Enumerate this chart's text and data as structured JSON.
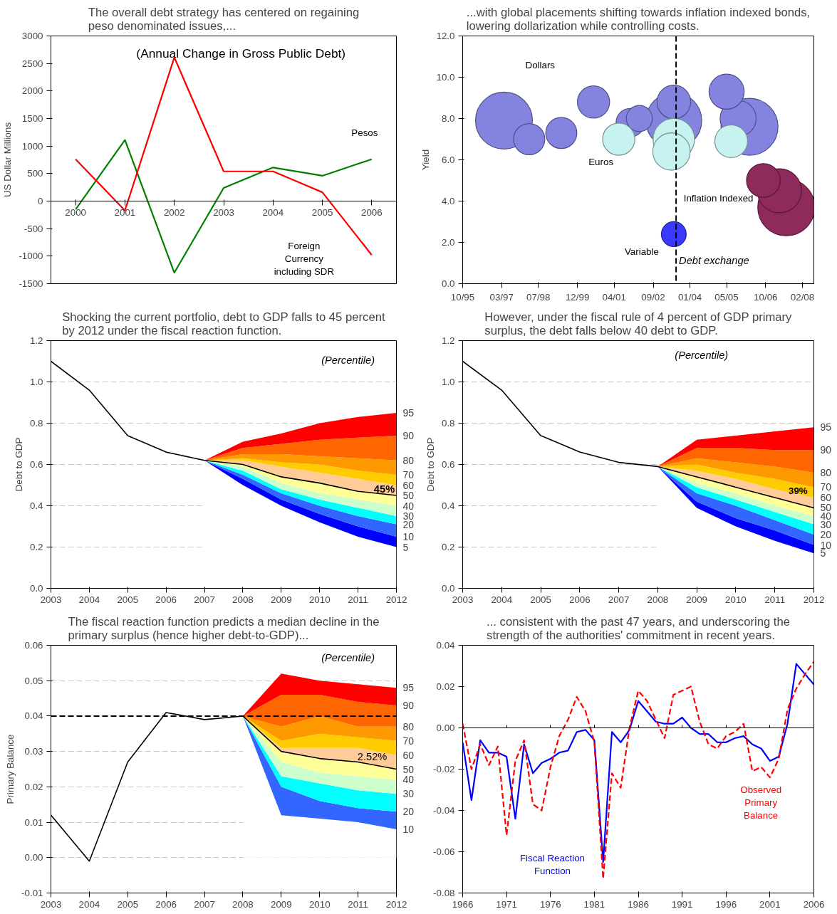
{
  "chart_data": [
    {
      "type": "line",
      "title": "The overall debt strategy has centered on regaining peso denominated issues,...",
      "ylabel": "US Dollar Millions",
      "annotations": [
        "(Annual Change in Gross Public Debt)"
      ],
      "categories": [
        "2000",
        "2001",
        "2002",
        "2003",
        "2004",
        "2005",
        "2006"
      ],
      "ylim": [
        -1500,
        3000
      ],
      "yticks": [
        -1500,
        -1000,
        -500,
        0,
        500,
        1000,
        1500,
        2000,
        2500,
        3000
      ],
      "series": [
        {
          "name": "Pesos",
          "color": "#008000",
          "values": [
            -150,
            1110,
            -1300,
            240,
            610,
            460,
            760
          ]
        },
        {
          "name": "Foreign Currency including SDR",
          "color": "#ff0000",
          "values": [
            760,
            -170,
            2610,
            540,
            540,
            160,
            -980
          ]
        }
      ]
    },
    {
      "type": "bubble",
      "title": "...with global placements shifting towards inflation indexed bonds, lowering dollarization while controlling costs.",
      "ylabel": "Yield",
      "xlim": [
        "1995-10",
        "2008-07"
      ],
      "xticks": [
        {
          "value": "1995-10",
          "label": "10/95"
        },
        {
          "value": "1997-03",
          "label": "03/97"
        },
        {
          "value": "1998-07",
          "label": "07/98"
        },
        {
          "value": "1999-12",
          "label": "12/99"
        },
        {
          "value": "2001-04",
          "label": "04/01"
        },
        {
          "value": "2002-09",
          "label": "09/02"
        },
        {
          "value": "2004-01",
          "label": "01/04"
        },
        {
          "value": "2005-05",
          "label": "05/05"
        },
        {
          "value": "2006-10",
          "label": "10/06"
        },
        {
          "value": "2008-02",
          "label": "02/08"
        }
      ],
      "ylim": [
        0,
        12
      ],
      "yticks": [
        {
          "value": 0,
          "label": "0.0"
        },
        {
          "value": 2,
          "label": "2.0"
        },
        {
          "value": 4,
          "label": "4.0"
        },
        {
          "value": 6,
          "label": "6.0"
        },
        {
          "value": 8,
          "label": "8.0"
        },
        {
          "value": 10,
          "label": "10.0"
        },
        {
          "value": 12,
          "label": "12.0"
        }
      ],
      "ref_lines": [
        {
          "axis": "x",
          "value": "2003-07",
          "label": "Debt exchange",
          "color": "#000000",
          "line_style": "dashed"
        }
      ],
      "series": [
        {
          "name": "Dollars",
          "color": "#8484e0",
          "x": [
            "1997-04",
            "1998-03",
            "1999-05",
            "2000-07",
            "2001-11",
            "2002-03",
            "2003-06",
            "2003-06",
            "2005-05",
            "2005-10",
            "2006-03"
          ],
          "values": [
            7.9,
            7.0,
            7.3,
            8.8,
            7.8,
            8.0,
            8.8,
            7.9,
            9.3,
            8.0,
            7.6
          ],
          "sizes": [
            1,
            0.3,
            0.3,
            0.32,
            0.25,
            0.21,
            0.35,
            0.96,
            0.38,
            0.4,
            1
          ]
        },
        {
          "name": "Euros",
          "color": "#c6f2f0",
          "x": [
            "2001-06",
            "2003-05",
            "2003-06",
            "2005-07"
          ],
          "values": [
            7.0,
            6.4,
            7.0,
            6.9
          ],
          "sizes": [
            0.32,
            0.43,
            0.53,
            0.33
          ]
        },
        {
          "name": "Inflation Indexed",
          "color": "#8e2a5c",
          "x": [
            "2006-09",
            "2007-04",
            "2007-07"
          ],
          "values": [
            5.0,
            4.5,
            3.7
          ],
          "sizes": [
            0.35,
            0.6,
            1
          ]
        },
        {
          "name": "Variable",
          "color": "#3a3aff",
          "x": [
            "2003-06"
          ],
          "values": [
            2.4
          ],
          "sizes": [
            0.19
          ]
        }
      ]
    },
    {
      "type": "area",
      "stacked": true,
      "title": "Shocking the current portfolio, debt to GDP falls to 45 percent by 2012 under the fiscal reaction function.",
      "ylabel": "Debt to GDP",
      "annotations": [
        "(Percentile)",
        "45%"
      ],
      "xlim": [
        2003,
        2012
      ],
      "xticks": [
        2003,
        2004,
        2005,
        2006,
        2007,
        2008,
        2009,
        2010,
        2011,
        2012
      ],
      "ylim": [
        0,
        1.2
      ],
      "yticks": [
        {
          "value": 0,
          "label": "0.0"
        },
        {
          "value": 0.2,
          "label": "0.2"
        },
        {
          "value": 0.4,
          "label": "0.4"
        },
        {
          "value": 0.6,
          "label": "0.6"
        },
        {
          "value": 0.8,
          "label": "0.8"
        },
        {
          "value": 1,
          "label": "1.0"
        },
        {
          "value": 1.2,
          "label": "1.2"
        }
      ],
      "grid": "y",
      "series": [
        {
          "name": "5",
          "color": "#ffffff",
          "x": [
            2007,
            2008,
            2009,
            2010,
            2011,
            2012
          ],
          "values": [
            0.62,
            0.5,
            0.4,
            0.32,
            0.25,
            0.2
          ]
        },
        {
          "name": "10",
          "color": "#0000ff",
          "x": [
            2007,
            2008,
            2009,
            2010,
            2011,
            2012
          ],
          "values": [
            0,
            0.03,
            0.03,
            0.04,
            0.05,
            0.05
          ]
        },
        {
          "name": "20",
          "color": "#3366ff",
          "x": [
            2007,
            2008,
            2009,
            2010,
            2011,
            2012
          ],
          "values": [
            0,
            0.02,
            0.03,
            0.04,
            0.05,
            0.06
          ]
        },
        {
          "name": "30",
          "color": "#00ffff",
          "x": [
            2007,
            2008,
            2009,
            2010,
            2011,
            2012
          ],
          "values": [
            0,
            0.02,
            0.02,
            0.03,
            0.04,
            0.04
          ]
        },
        {
          "name": "40",
          "color": "#ccffcc",
          "x": [
            2007,
            2008,
            2009,
            2010,
            2011,
            2012
          ],
          "values": [
            0,
            0.02,
            0.03,
            0.03,
            0.04,
            0.05
          ]
        },
        {
          "name": "50",
          "color": "#ffff99",
          "x": [
            2007,
            2008,
            2009,
            2010,
            2011,
            2012
          ],
          "values": [
            0,
            0.01,
            0.03,
            0.05,
            0.04,
            0.05
          ]
        },
        {
          "name": "60",
          "color": "#ffcc99",
          "x": [
            2007,
            2008,
            2009,
            2010,
            2011,
            2012
          ],
          "values": [
            0,
            0.02,
            0.05,
            0.05,
            0.06,
            0.05
          ]
        },
        {
          "name": "70",
          "color": "#ffcc00",
          "x": [
            2007,
            2008,
            2009,
            2010,
            2011,
            2012
          ],
          "values": [
            0,
            0.01,
            0.02,
            0.04,
            0.04,
            0.05
          ]
        },
        {
          "name": "80",
          "color": "#ff9900",
          "x": [
            2007,
            2008,
            2009,
            2010,
            2011,
            2012
          ],
          "values": [
            0,
            0.02,
            0.04,
            0.04,
            0.06,
            0.07
          ]
        },
        {
          "name": "90",
          "color": "#ff6600",
          "x": [
            2007,
            2008,
            2009,
            2010,
            2011,
            2012
          ],
          "values": [
            0,
            0.03,
            0.05,
            0.08,
            0.1,
            0.12
          ]
        },
        {
          "name": "95",
          "color": "#ff0000",
          "x": [
            2007,
            2008,
            2009,
            2010,
            2011,
            2012
          ],
          "values": [
            0,
            0.03,
            0.05,
            0.08,
            0.1,
            0.11
          ]
        },
        {
          "type": "line",
          "color": "#000000",
          "x": [
            2003,
            2004,
            2005,
            2006,
            2007,
            2008,
            2009,
            2010,
            2011,
            2012
          ],
          "values": [
            1.1,
            0.96,
            0.74,
            0.66,
            0.62,
            0.6,
            0.54,
            0.51,
            0.47,
            0.45
          ]
        }
      ]
    },
    {
      "type": "area",
      "stacked": true,
      "title": "However, under the fiscal rule of 4 percent of GDP primary surplus, the debt falls below 40 debt to GDP.",
      "ylabel": "Debt to GDP",
      "annotations": [
        "(Percentile)",
        "39%"
      ],
      "xlim": [
        2003,
        2012
      ],
      "xticks": [
        2003,
        2004,
        2005,
        2006,
        2007,
        2008,
        2009,
        2010,
        2011,
        2012
      ],
      "ylim": [
        0,
        1.2
      ],
      "yticks": [
        {
          "value": 0,
          "label": "0.0"
        },
        {
          "value": 0.2,
          "label": "0.2"
        },
        {
          "value": 0.4,
          "label": "0.4"
        },
        {
          "value": 0.6,
          "label": "0.6"
        },
        {
          "value": 0.8,
          "label": "0.8"
        },
        {
          "value": 1,
          "label": "1.0"
        },
        {
          "value": 1.2,
          "label": "1.2"
        }
      ],
      "grid": "y",
      "series": [
        {
          "name": "5",
          "color": "#ffffff",
          "x": [
            2008,
            2009,
            2010,
            2011,
            2012
          ],
          "values": [
            0.59,
            0.39,
            0.3,
            0.23,
            0.17
          ]
        },
        {
          "name": "10",
          "color": "#0000ff",
          "x": [
            2008,
            2009,
            2010,
            2011,
            2012
          ],
          "values": [
            0,
            0.03,
            0.04,
            0.05,
            0.04
          ]
        },
        {
          "name": "20",
          "color": "#3366ff",
          "x": [
            2008,
            2009,
            2010,
            2011,
            2012
          ],
          "values": [
            0,
            0.04,
            0.06,
            0.05,
            0.05
          ]
        },
        {
          "name": "30",
          "color": "#00ffff",
          "x": [
            2008,
            2009,
            2010,
            2011,
            2012
          ],
          "values": [
            0,
            0.03,
            0.03,
            0.04,
            0.05
          ]
        },
        {
          "name": "40",
          "color": "#ccffcc",
          "x": [
            2008,
            2009,
            2010,
            2011,
            2012
          ],
          "values": [
            0,
            0.02,
            0.03,
            0.03,
            0.04
          ]
        },
        {
          "name": "50",
          "color": "#ffff99",
          "x": [
            2008,
            2009,
            2010,
            2011,
            2012
          ],
          "values": [
            0,
            0.03,
            0.03,
            0.04,
            0.04
          ]
        },
        {
          "name": "60",
          "color": "#ffcc99",
          "x": [
            2008,
            2009,
            2010,
            2011,
            2012
          ],
          "values": [
            0,
            0.03,
            0.04,
            0.04,
            0.05
          ]
        },
        {
          "name": "70",
          "color": "#ffcc00",
          "x": [
            2008,
            2009,
            2010,
            2011,
            2012
          ],
          "values": [
            0,
            0.03,
            0.03,
            0.05,
            0.05
          ]
        },
        {
          "name": "80",
          "color": "#ff9900",
          "x": [
            2008,
            2009,
            2010,
            2011,
            2012
          ],
          "values": [
            0,
            0.03,
            0.05,
            0.06,
            0.07
          ]
        },
        {
          "name": "90",
          "color": "#ff6600",
          "x": [
            2008,
            2009,
            2010,
            2011,
            2012
          ],
          "values": [
            0,
            0.05,
            0.07,
            0.08,
            0.11
          ]
        },
        {
          "name": "95",
          "color": "#ff0000",
          "x": [
            2008,
            2009,
            2010,
            2011,
            2012
          ],
          "values": [
            0,
            0.04,
            0.06,
            0.09,
            0.11
          ]
        },
        {
          "type": "line",
          "color": "#000000",
          "x": [
            2003,
            2004,
            2005,
            2006,
            2007,
            2008,
            2009,
            2010,
            2011,
            2012
          ],
          "values": [
            1.1,
            0.96,
            0.74,
            0.66,
            0.61,
            0.59,
            0.54,
            0.49,
            0.44,
            0.39
          ]
        }
      ]
    },
    {
      "type": "area",
      "stacked": true,
      "title": "The fiscal reaction function predicts a median decline in the primary surplus (hence higher debt-to-GDP)...",
      "ylabel": "Primary Balance",
      "annotations": [
        "(Percentile)",
        "2.52%"
      ],
      "xlim": [
        2003,
        2012
      ],
      "xticks": [
        2003,
        2004,
        2005,
        2006,
        2007,
        2008,
        2009,
        2010,
        2011,
        2012
      ],
      "ylim": [
        -0.01,
        0.06
      ],
      "yticks": [
        {
          "value": -0.01,
          "label": "-0.01"
        },
        {
          "value": 0,
          "label": "0.00"
        },
        {
          "value": 0.01,
          "label": "0.01"
        },
        {
          "value": 0.02,
          "label": "0.02"
        },
        {
          "value": 0.03,
          "label": "0.03"
        },
        {
          "value": 0.04,
          "label": "0.04"
        },
        {
          "value": 0.05,
          "label": "0.05"
        },
        {
          "value": 0.06,
          "label": "0.06"
        }
      ],
      "grid": "y",
      "ref_lines": [
        {
          "axis": "y",
          "value": 0.04,
          "color": "#000000",
          "line_style": "dashed"
        }
      ],
      "series": [
        {
          "name": "10",
          "color": "#ffffff",
          "x": [
            2008,
            2009,
            2010,
            2011,
            2012
          ],
          "values": [
            0.04,
            0.012,
            0.011,
            0.01,
            0.008
          ]
        },
        {
          "name": "20",
          "color": "#3366ff",
          "x": [
            2008,
            2009,
            2010,
            2011,
            2012
          ],
          "values": [
            0,
            0.008,
            0.005,
            0.004,
            0.005
          ]
        },
        {
          "name": "30",
          "color": "#00ffff",
          "x": [
            2008,
            2009,
            2010,
            2011,
            2012
          ],
          "values": [
            0,
            0.003,
            0.005,
            0.005,
            0.005
          ]
        },
        {
          "name": "40",
          "color": "#ccffcc",
          "x": [
            2008,
            2009,
            2010,
            2011,
            2012
          ],
          "values": [
            0,
            0.004,
            0.003,
            0.004,
            0.004
          ]
        },
        {
          "name": "50",
          "color": "#ffff99",
          "x": [
            2008,
            2009,
            2010,
            2011,
            2012
          ],
          "values": [
            0,
            0.003,
            0.004,
            0.004,
            0.003
          ]
        },
        {
          "name": "60",
          "color": "#ffcc99",
          "x": [
            2008,
            2009,
            2010,
            2011,
            2012
          ],
          "values": [
            0,
            0.001,
            0.003,
            0.004,
            0.004
          ]
        },
        {
          "name": "70",
          "color": "#ffcc00",
          "x": [
            2008,
            2009,
            2010,
            2011,
            2012
          ],
          "values": [
            0,
            0.002,
            0.004,
            0.003,
            0.004
          ]
        },
        {
          "name": "80",
          "color": "#ff9900",
          "x": [
            2008,
            2009,
            2010,
            2011,
            2012
          ],
          "values": [
            0,
            0.004,
            0.005,
            0.003,
            0.004
          ]
        },
        {
          "name": "90",
          "color": "#ff6600",
          "x": [
            2008,
            2009,
            2010,
            2011,
            2012
          ],
          "values": [
            0,
            0.009,
            0.006,
            0.007,
            0.006
          ]
        },
        {
          "name": "95",
          "color": "#ff0000",
          "x": [
            2008,
            2009,
            2010,
            2011,
            2012
          ],
          "values": [
            0,
            0.006,
            0.004,
            0.005,
            0.005
          ]
        },
        {
          "type": "line",
          "color": "#000000",
          "x": [
            2003,
            2004,
            2005,
            2006,
            2007,
            2008,
            2009,
            2010,
            2011,
            2012
          ],
          "values": [
            0.012,
            -0.001,
            0.027,
            0.041,
            0.039,
            0.04,
            0.03,
            0.028,
            0.027,
            0.025
          ]
        }
      ]
    },
    {
      "type": "line",
      "title": "... consistent with the past 47 years, and underscoring the strength of the authorities' commitment in recent years.",
      "xlim": [
        1966,
        2006
      ],
      "xticks": [
        1966,
        1971,
        1976,
        1981,
        1986,
        1991,
        1996,
        2001,
        2006
      ],
      "ylim": [
        -0.08,
        0.04
      ],
      "yticks": [
        {
          "value": -0.08,
          "label": "-0.08"
        },
        {
          "value": -0.06,
          "label": "-0.06"
        },
        {
          "value": -0.04,
          "label": "-0.04"
        },
        {
          "value": -0.02,
          "label": "-0.02"
        },
        {
          "value": 0,
          "label": "0.00"
        },
        {
          "value": 0.02,
          "label": "0.02"
        },
        {
          "value": 0.04,
          "label": "0.04"
        }
      ],
      "series": [
        {
          "name": "Fiscal Reaction Function",
          "color": "#0000ff",
          "x": [
            1966,
            1967,
            1968,
            1969,
            1970,
            1971,
            1972,
            1973,
            1974,
            1975,
            1976,
            1977,
            1978,
            1979,
            1980,
            1981,
            1982,
            1983,
            1984,
            1985,
            1986,
            1987,
            1988,
            1989,
            1990,
            1991,
            1992,
            1993,
            1994,
            1995,
            1996,
            1997,
            1998,
            1999,
            2000,
            2001,
            2002,
            2003,
            2004,
            2005,
            2006
          ],
          "values": [
            -0.007,
            -0.035,
            -0.006,
            -0.012,
            -0.012,
            -0.014,
            -0.044,
            -0.008,
            -0.022,
            -0.017,
            -0.015,
            -0.012,
            -0.011,
            -0.002,
            -0.001,
            -0.006,
            -0.065,
            -0.002,
            -0.007,
            -0.001,
            0.013,
            0.008,
            0.003,
            0.002,
            0.002,
            0.005,
            0.0,
            -0.003,
            -0.003,
            -0.007,
            -0.007,
            -0.005,
            -0.004,
            -0.008,
            -0.01,
            -0.016,
            -0.014,
            0.002,
            0.031,
            0.026,
            0.021
          ]
        },
        {
          "name": "Observed Primary Balance",
          "color": "#ff0000",
          "line_style": "dashed",
          "x": [
            1966,
            1967,
            1968,
            1969,
            1970,
            1971,
            1972,
            1973,
            1974,
            1975,
            1976,
            1977,
            1978,
            1979,
            1980,
            1981,
            1982,
            1983,
            1984,
            1985,
            1986,
            1987,
            1988,
            1989,
            1990,
            1991,
            1992,
            1993,
            1994,
            1995,
            1996,
            1997,
            1998,
            1999,
            2000,
            2001,
            2002,
            2003,
            2004,
            2005,
            2006
          ],
          "values": [
            0.002,
            -0.02,
            -0.008,
            -0.018,
            -0.009,
            -0.052,
            -0.016,
            -0.006,
            -0.037,
            -0.04,
            -0.019,
            -0.004,
            0.004,
            0.015,
            0.008,
            -0.007,
            -0.073,
            -0.022,
            -0.029,
            0.0,
            0.018,
            0.013,
            0.004,
            -0.005,
            0.016,
            0.018,
            0.02,
            0.003,
            -0.008,
            -0.01,
            -0.004,
            -0.002,
            0.002,
            -0.021,
            -0.019,
            -0.024,
            -0.015,
            0.009,
            0.019,
            0.026,
            0.032
          ]
        }
      ]
    }
  ]
}
